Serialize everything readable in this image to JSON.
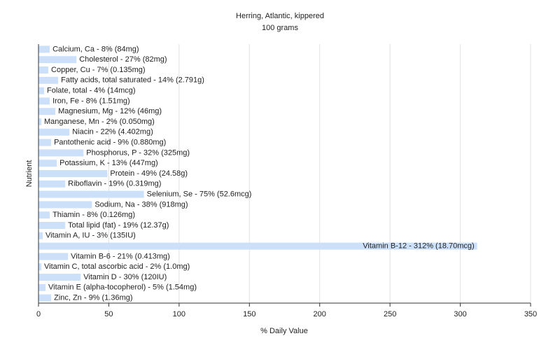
{
  "chart_data": {
    "type": "hbar",
    "title": "Herring, Atlantic, kippered",
    "subtitle": "100 grams",
    "x_label": "% Daily Value",
    "y_label": "Nutrient",
    "values": [
      8,
      27,
      7,
      14,
      4,
      8,
      12,
      2,
      22,
      9,
      32,
      13,
      49,
      19,
      75,
      38,
      8,
      19,
      3,
      312,
      21,
      2,
      30,
      5,
      9
    ],
    "value_labels": [
      "Calcium, Ca - 8% (84mg)",
      "Cholesterol - 27% (82mg)",
      "Copper, Cu - 7% (0.135mg)",
      "Fatty acids, total saturated - 14% (2.791g)",
      "Folate, total - 4% (14mcg)",
      "Iron, Fe - 8% (1.51mg)",
      "Magnesium, Mg - 12% (46mg)",
      "Manganese, Mn - 2% (0.050mg)",
      "Niacin - 22% (4.402mg)",
      "Pantothenic acid - 9% (0.880mg)",
      "Phosphorus, P - 32% (325mg)",
      "Potassium, K - 13% (447mg)",
      "Protein - 49% (24.58g)",
      "Riboflavin - 19% (0.319mg)",
      "Selenium, Se - 75% (52.6mcg)",
      "Sodium, Na - 38% (918mg)",
      "Thiamin - 8% (0.126mg)",
      "Total lipid (fat) - 19% (12.37g)",
      "Vitamin A, IU - 3% (135IU)",
      "Vitamin B-12 - 312% (18.70mcg)",
      "Vitamin B-6 - 21% (0.413mg)",
      "Vitamin C, total ascorbic acid - 2% (1.0mg)",
      "Vitamin D - 30% (120IU)",
      "Vitamin E (alpha-tocopherol) - 5% (1.54mg)",
      "Zinc, Zn - 9% (1.36mg)"
    ],
    "color": "#cce0fa",
    "xlim": [
      0,
      350
    ],
    "xticks": [
      0,
      50,
      100,
      150,
      200,
      250,
      300,
      350
    ],
    "grid": true
  }
}
